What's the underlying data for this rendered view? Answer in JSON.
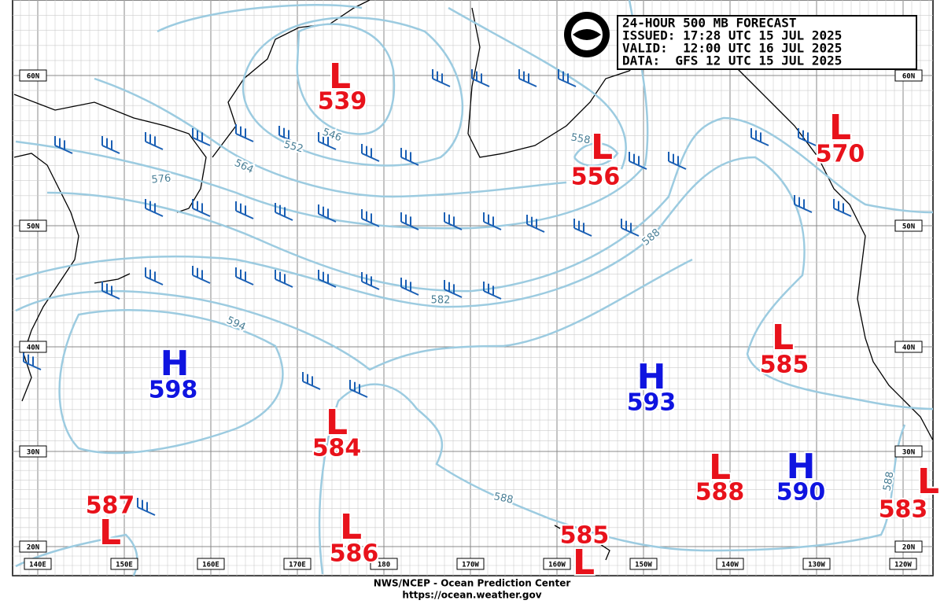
{
  "header": {
    "lines": [
      "24-HOUR 500 MB FORECAST",
      "ISSUED: 17:28 UTC 15 JUL 2025",
      "VALID:  12:00 UTC 16 JUL 2025",
      "DATA:  GFS 12 UTC 15 JUL 2025"
    ]
  },
  "centers": [
    {
      "type": "L",
      "value": "539"
    },
    {
      "type": "L",
      "value": "556"
    },
    {
      "type": "L",
      "value": "570"
    },
    {
      "type": "L",
      "value": "585"
    },
    {
      "type": "H",
      "value": "598"
    },
    {
      "type": "H",
      "value": "593"
    },
    {
      "type": "L",
      "value": "584"
    },
    {
      "type": "L",
      "value": "588"
    },
    {
      "type": "H",
      "value": "590"
    },
    {
      "type": "L",
      "value": "583"
    },
    {
      "type": "L",
      "value": "587"
    },
    {
      "type": "L",
      "value": "586"
    },
    {
      "type": "L",
      "value": "585"
    }
  ],
  "contour_labels": [
    "546",
    "552",
    "558",
    "564",
    "576",
    "582",
    "588",
    "594",
    "588",
    "588"
  ],
  "lat_labels": [
    "60N",
    "50N",
    "40N",
    "30N",
    "20N"
  ],
  "lon_labels": [
    "140E",
    "150E",
    "160E",
    "170E",
    "180",
    "170W",
    "160W",
    "150W",
    "140W",
    "130W",
    "120W"
  ],
  "footer": [
    "NWS/NCEP - Ocean Prediction Center",
    "https://ocean.weather.gov"
  ]
}
